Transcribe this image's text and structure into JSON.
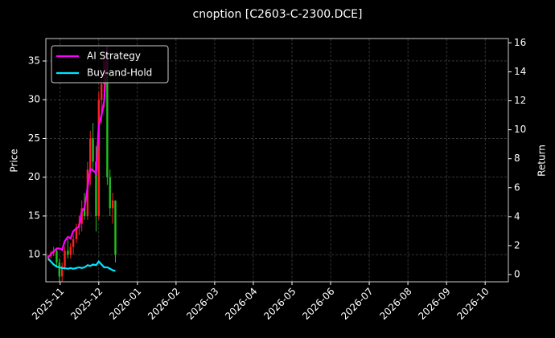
{
  "chart_data": {
    "type": "candlestick",
    "title": "cnoption [C2603-C-2300.DCE]",
    "ylabel": "Price",
    "y2label": "Return",
    "xlim": [
      -0.37,
      11.6
    ],
    "xticks": [
      {
        "value": 0,
        "label": "2025-11"
      },
      {
        "value": 1,
        "label": "2025-12"
      },
      {
        "value": 2,
        "label": "2026-01"
      },
      {
        "value": 3,
        "label": "2026-02"
      },
      {
        "value": 4,
        "label": "2026-03"
      },
      {
        "value": 5,
        "label": "2026-04"
      },
      {
        "value": 6,
        "label": "2026-05"
      },
      {
        "value": 7,
        "label": "2026-06"
      },
      {
        "value": 8,
        "label": "2026-07"
      },
      {
        "value": 9,
        "label": "2026-08"
      },
      {
        "value": 10,
        "label": "2026-09"
      },
      {
        "value": 11,
        "label": "2026-10"
      }
    ],
    "ylim": [
      6.5,
      37.9
    ],
    "yticks": [
      10,
      15,
      20,
      25,
      30,
      35
    ],
    "y2lim": [
      -0.5,
      16.3
    ],
    "y2ticks": [
      0,
      2,
      4,
      6,
      8,
      10,
      12,
      14,
      16
    ],
    "grid": true,
    "legend": "upper left",
    "up_color": "#ff2020",
    "down_color": "#20c020",
    "x": [
      -0.31,
      -0.24,
      -0.17,
      -0.09,
      -0.02,
      0.05,
      0.12,
      0.2,
      0.27,
      0.34,
      0.42,
      0.49,
      0.56,
      0.63,
      0.71,
      0.78,
      0.85,
      0.93,
      1.0,
      1.07,
      1.14,
      1.22,
      1.29,
      1.36,
      1.43
    ],
    "open": [
      9.5,
      9.8,
      10.2,
      10.5,
      9,
      7.2,
      8.5,
      10.5,
      10,
      11,
      12,
      13.5,
      14,
      16,
      15,
      21,
      25,
      22,
      15,
      30,
      32,
      35,
      20,
      16,
      17
    ],
    "high": [
      10,
      10.5,
      11,
      10.8,
      9.5,
      9,
      11,
      12,
      11.5,
      12.5,
      14,
      15,
      17,
      18,
      22,
      26,
      27,
      24,
      31,
      33,
      36,
      36,
      21,
      18,
      17
    ],
    "low": [
      9.2,
      9.5,
      9.8,
      8.5,
      6.5,
      6.5,
      8,
      9.5,
      9.5,
      10,
      11.5,
      12.5,
      13,
      14.5,
      14.5,
      19,
      21,
      13,
      14.5,
      27,
      29,
      19,
      15,
      14,
      9
    ],
    "close": [
      9.8,
      10.2,
      10.5,
      9,
      7.2,
      8.5,
      10.5,
      10,
      11,
      12,
      13.5,
      14,
      16,
      15,
      21,
      25,
      22,
      15,
      30,
      32,
      35,
      20,
      16,
      17,
      10
    ],
    "series": [
      {
        "name": "AI Strategy",
        "color": "#ff00ff",
        "axis": "y2",
        "values": [
          1.2,
          1.4,
          1.6,
          1.8,
          1.8,
          1.7,
          2.3,
          2.6,
          2.5,
          3.0,
          3.2,
          3.3,
          4.4,
          4.6,
          6.0,
          7.3,
          7.2,
          7.0,
          10.3,
          11.0,
          12.0,
          15.8,
          null,
          null,
          null
        ]
      },
      {
        "name": "Buy-and-Hold",
        "color": "#00e5ff",
        "axis": "y2",
        "values": [
          1.1,
          0.9,
          0.7,
          0.55,
          0.5,
          0.45,
          0.45,
          0.4,
          0.45,
          0.4,
          0.45,
          0.5,
          0.45,
          0.5,
          0.65,
          0.6,
          0.7,
          0.65,
          0.9,
          0.7,
          0.5,
          0.5,
          0.4,
          0.3,
          0.25
        ]
      }
    ]
  }
}
